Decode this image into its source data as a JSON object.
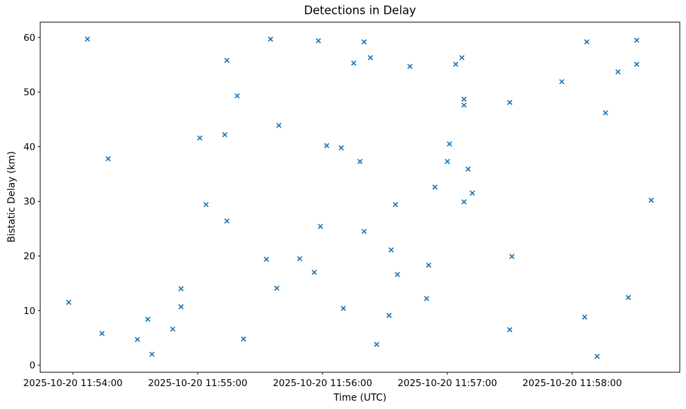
{
  "chart_data": {
    "type": "scatter",
    "title": "Detections in Delay",
    "xlabel": "Time (UTC)",
    "ylabel": "Bistatic Delay (km)",
    "marker": "x",
    "marker_color": "#1f77b4",
    "axis_color": "#000000",
    "grid": false,
    "legend": false,
    "x_tick_labels": [
      "2025-10-20 11:54:00",
      "2025-10-20 11:55:00",
      "2025-10-20 11:56:00",
      "2025-10-20 11:57:00",
      "2025-10-20 11:58:00"
    ],
    "y_ticks": [
      0,
      10,
      20,
      30,
      40,
      50,
      60
    ],
    "xlim_seconds_from_115400": [
      -15.7,
      291.7
    ],
    "ylim": [
      -1.3,
      62.8
    ],
    "points": [
      {
        "time": "2025-10-20 11:53:58",
        "delay_km": 11.5
      },
      {
        "time": "2025-10-20 11:54:07",
        "delay_km": 59.7
      },
      {
        "time": "2025-10-20 11:54:14",
        "delay_km": 5.8
      },
      {
        "time": "2025-10-20 11:54:17",
        "delay_km": 37.8
      },
      {
        "time": "2025-10-20 11:54:31",
        "delay_km": 4.7
      },
      {
        "time": "2025-10-20 11:54:36",
        "delay_km": 8.4
      },
      {
        "time": "2025-10-20 11:54:38",
        "delay_km": 2.0
      },
      {
        "time": "2025-10-20 11:54:48",
        "delay_km": 6.6
      },
      {
        "time": "2025-10-20 11:54:52",
        "delay_km": 14.0
      },
      {
        "time": "2025-10-20 11:54:52",
        "delay_km": 10.7
      },
      {
        "time": "2025-10-20 11:55:01",
        "delay_km": 41.6
      },
      {
        "time": "2025-10-20 11:55:04",
        "delay_km": 29.4
      },
      {
        "time": "2025-10-20 11:55:13",
        "delay_km": 42.2
      },
      {
        "time": "2025-10-20 11:55:14",
        "delay_km": 55.8
      },
      {
        "time": "2025-10-20 11:55:14",
        "delay_km": 26.4
      },
      {
        "time": "2025-10-20 11:55:19",
        "delay_km": 49.3
      },
      {
        "time": "2025-10-20 11:55:22",
        "delay_km": 4.8
      },
      {
        "time": "2025-10-20 11:55:33",
        "delay_km": 19.4
      },
      {
        "time": "2025-10-20 11:55:35",
        "delay_km": 59.7
      },
      {
        "time": "2025-10-20 11:55:38",
        "delay_km": 14.1
      },
      {
        "time": "2025-10-20 11:55:39",
        "delay_km": 43.9
      },
      {
        "time": "2025-10-20 11:55:49",
        "delay_km": 19.5
      },
      {
        "time": "2025-10-20 11:55:56",
        "delay_km": 17.0
      },
      {
        "time": "2025-10-20 11:55:58",
        "delay_km": 59.4
      },
      {
        "time": "2025-10-20 11:55:59",
        "delay_km": 25.4
      },
      {
        "time": "2025-10-20 11:56:02",
        "delay_km": 40.2
      },
      {
        "time": "2025-10-20 11:56:09",
        "delay_km": 39.8
      },
      {
        "time": "2025-10-20 11:56:10",
        "delay_km": 10.4
      },
      {
        "time": "2025-10-20 11:56:15",
        "delay_km": 55.3
      },
      {
        "time": "2025-10-20 11:56:18",
        "delay_km": 37.3
      },
      {
        "time": "2025-10-20 11:56:20",
        "delay_km": 59.2
      },
      {
        "time": "2025-10-20 11:56:20",
        "delay_km": 24.5
      },
      {
        "time": "2025-10-20 11:56:23",
        "delay_km": 56.3
      },
      {
        "time": "2025-10-20 11:56:26",
        "delay_km": 3.8
      },
      {
        "time": "2025-10-20 11:56:32",
        "delay_km": 9.1
      },
      {
        "time": "2025-10-20 11:56:33",
        "delay_km": 21.1
      },
      {
        "time": "2025-10-20 11:56:35",
        "delay_km": 29.4
      },
      {
        "time": "2025-10-20 11:56:36",
        "delay_km": 16.6
      },
      {
        "time": "2025-10-20 11:56:42",
        "delay_km": 54.7
      },
      {
        "time": "2025-10-20 11:56:50",
        "delay_km": 12.2
      },
      {
        "time": "2025-10-20 11:56:51",
        "delay_km": 18.3
      },
      {
        "time": "2025-10-20 11:56:54",
        "delay_km": 32.6
      },
      {
        "time": "2025-10-20 11:57:00",
        "delay_km": 37.3
      },
      {
        "time": "2025-10-20 11:57:01",
        "delay_km": 40.5
      },
      {
        "time": "2025-10-20 11:57:04",
        "delay_km": 55.1
      },
      {
        "time": "2025-10-20 11:57:07",
        "delay_km": 56.3
      },
      {
        "time": "2025-10-20 11:57:08",
        "delay_km": 48.7
      },
      {
        "time": "2025-10-20 11:57:08",
        "delay_km": 47.6
      },
      {
        "time": "2025-10-20 11:57:08",
        "delay_km": 29.9
      },
      {
        "time": "2025-10-20 11:57:10",
        "delay_km": 35.9
      },
      {
        "time": "2025-10-20 11:57:12",
        "delay_km": 31.5
      },
      {
        "time": "2025-10-20 11:57:30",
        "delay_km": 48.1
      },
      {
        "time": "2025-10-20 11:57:30",
        "delay_km": 6.5
      },
      {
        "time": "2025-10-20 11:57:31",
        "delay_km": 19.9
      },
      {
        "time": "2025-10-20 11:57:55",
        "delay_km": 51.9
      },
      {
        "time": "2025-10-20 11:58:06",
        "delay_km": 8.8
      },
      {
        "time": "2025-10-20 11:58:07",
        "delay_km": 59.2
      },
      {
        "time": "2025-10-20 11:58:12",
        "delay_km": 1.6
      },
      {
        "time": "2025-10-20 11:58:16",
        "delay_km": 46.2
      },
      {
        "time": "2025-10-20 11:58:22",
        "delay_km": 53.7
      },
      {
        "time": "2025-10-20 11:58:27",
        "delay_km": 12.4
      },
      {
        "time": "2025-10-20 11:58:31",
        "delay_km": 59.5
      },
      {
        "time": "2025-10-20 11:58:31",
        "delay_km": 55.1
      },
      {
        "time": "2025-10-20 11:58:38",
        "delay_km": 30.2
      }
    ]
  }
}
